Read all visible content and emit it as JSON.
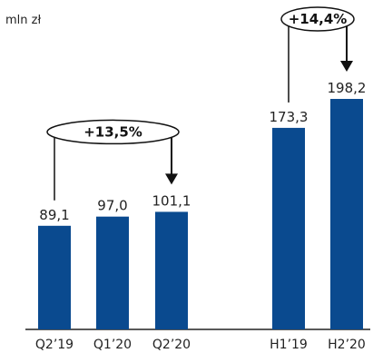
{
  "unit": "mln zł",
  "chart_data": {
    "type": "bar",
    "categories": [
      "Q2’19",
      "Q1’20",
      "Q2’20",
      "H1’19",
      "H2’20"
    ],
    "values": [
      89.1,
      97.0,
      101.1,
      173.3,
      198.2
    ],
    "value_labels": [
      "89,1",
      "97,0",
      "101,1",
      "173,3",
      "198,2"
    ],
    "ylim": [
      0,
      220
    ],
    "bar_color": "#0a4a8f",
    "annotations": [
      {
        "text": "+13,5%",
        "from": "Q2’19",
        "to": "Q2’20"
      },
      {
        "text": "+14,4%",
        "from": "H1’19",
        "to": "H2’20"
      }
    ]
  }
}
